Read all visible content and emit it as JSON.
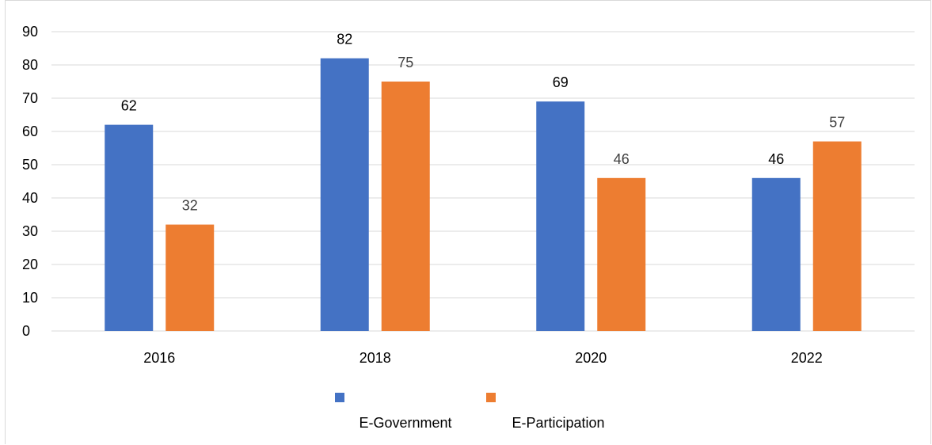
{
  "chart_data": {
    "type": "bar",
    "categories": [
      "2016",
      "2018",
      "2020",
      "2022"
    ],
    "series": [
      {
        "name": "E-Government",
        "values": [
          62,
          82,
          69,
          46
        ],
        "color": "#4472C4"
      },
      {
        "name": "E-Participation",
        "values": [
          32,
          75,
          46,
          57
        ],
        "color": "#ED7D31"
      }
    ],
    "ylim": [
      0,
      90
    ],
    "yticks": [
      0,
      10,
      20,
      30,
      40,
      50,
      60,
      70,
      80,
      90
    ],
    "grid": true,
    "data_labels": true,
    "legend_position": "bottom"
  }
}
